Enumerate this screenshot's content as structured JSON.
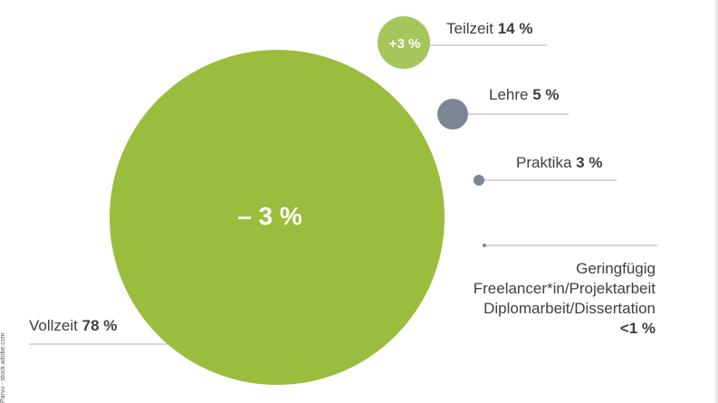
{
  "chart_data": {
    "type": "bubble",
    "title": "",
    "series": [
      {
        "name": "Vollzeit",
        "value_percent": 78,
        "change": "– 3 %",
        "color": "#9bbd3d"
      },
      {
        "name": "Teilzeit",
        "value_percent": 14,
        "change": "+3 %",
        "color": "#a4c65b"
      },
      {
        "name": "Lehre",
        "value_percent": 5,
        "change": "",
        "color": "#7d8595"
      },
      {
        "name": "Praktika",
        "value_percent": 3,
        "change": "",
        "color": "#7d8595"
      },
      {
        "name": "Geringfügig / Freelancer*in/Projektarbeit / Diplomarbeit/Dissertation",
        "value_percent_text": "<1 %",
        "color": "#7d8595"
      }
    ]
  },
  "labels": {
    "vollzeit_name": "Vollzeit",
    "vollzeit_value": "78 %",
    "vollzeit_change": "– 3 %",
    "teilzeit_name": "Teilzeit",
    "teilzeit_value": "14 %",
    "teilzeit_change": "+3 %",
    "lehre_name": "Lehre",
    "lehre_value": "5 %",
    "praktika_name": "Praktika",
    "praktika_value": "3 %",
    "other_line1": "Geringfügig",
    "other_line2": "Freelancer*in/Projektarbeit",
    "other_line3": "Diplomarbeit/Dissertation",
    "other_value": "<1 %"
  },
  "credit": "Parvu - stock.adobe.com"
}
